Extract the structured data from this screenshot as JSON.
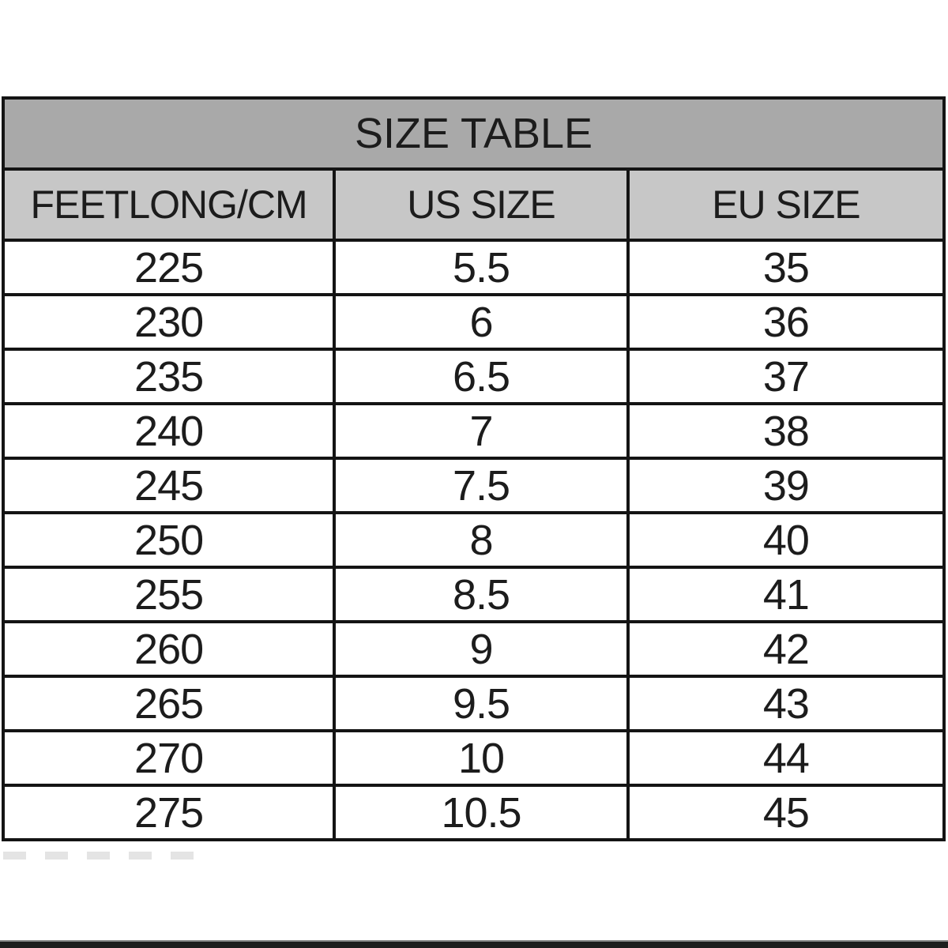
{
  "chart_data": {
    "type": "table",
    "title": "SIZE TABLE",
    "columns": [
      "FEETLONG/CM",
      "US SIZE",
      "EU SIZE"
    ],
    "rows": [
      [
        "225",
        "5.5",
        "35"
      ],
      [
        "230",
        "6",
        "36"
      ],
      [
        "235",
        "6.5",
        "37"
      ],
      [
        "240",
        "7",
        "38"
      ],
      [
        "245",
        "7.5",
        "39"
      ],
      [
        "250",
        "8",
        "40"
      ],
      [
        "255",
        "8.5",
        "41"
      ],
      [
        "260",
        "9",
        "42"
      ],
      [
        "265",
        "9.5",
        "43"
      ],
      [
        "270",
        "10",
        "44"
      ],
      [
        "275",
        "10.5",
        "45"
      ]
    ],
    "layout_hints": {
      "title_row_spans_all_columns": true,
      "gridlines": "solid black borders on every cell",
      "text_alignment": "center"
    }
  },
  "colors": {
    "page_bg": "#ffffff",
    "title_bg": "#a9a9a9",
    "header_bg": "#c7c7c7",
    "row_bg": "#ffffff",
    "border": "#141414",
    "text": "#1c1c1c"
  }
}
